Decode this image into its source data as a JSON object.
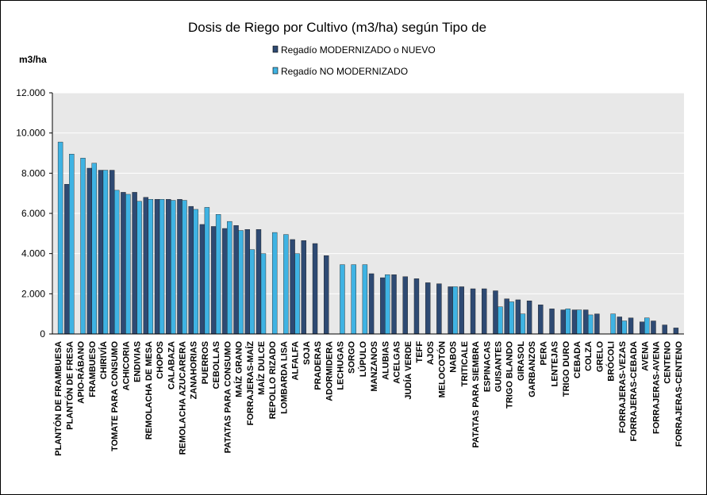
{
  "chart_data": {
    "type": "bar",
    "title": "Dosis de Riego por Cultivo (m3/ha) según Tipo de",
    "ylabel": "m3/ha",
    "ylim": [
      0,
      12000
    ],
    "yticks": [
      "0",
      "2.000",
      "4.000",
      "6.000",
      "8.000",
      "10.000",
      "12.000"
    ],
    "grid": true,
    "legend_position": "top",
    "colors": {
      "plot_bg": "#e8e8e8",
      "gridline": "#ffffff",
      "axis": "#000000"
    },
    "categories": [
      "PLANTÓN DE FRAMBUESA",
      "PLANTÓN DE FRESA",
      "APIO-RÁBANO",
      "FRAMBUESO",
      "CHIRIVÍA",
      "TOMATE PARA CONSUMO",
      "ACHICORIA",
      "ENDIVIAS",
      "REMOLACHA DE MESA",
      "CHOPOS",
      "CALABAZA",
      "REMOLACHA AZUCARERA",
      "ZANAHORIAS",
      "PUERROS",
      "CEBOLLAS",
      "PATATAS PARA CONSUMO",
      "MAÍZ GRANO",
      "FORRAJERAS-MAÍZ",
      "MAÍZ DULCE",
      "REPOLLO RIZADO",
      "LOMBARDA LISA",
      "ALFALFA",
      "SOJA",
      "PRADERAS",
      "ADORMIDERA",
      "LECHUGAS",
      "SORGO",
      "LÚPULO",
      "MANZANOS",
      "ALUBIAS",
      "ACELGAS",
      "JUDÍA VERDE",
      "TEFF",
      "AJOS",
      "MELOCOTÓN",
      "NABOS",
      "TRITICALE",
      "PATATAS PARA SIEMBRA",
      "ESPINACAS",
      "GUISANTES",
      "TRIGO BLANDO",
      "GIRASOL",
      "GARBANZOS",
      "PERA",
      "LENTEJAS",
      "TRIGO DURO",
      "CEBADA",
      "COLZA",
      "GRELO",
      "BRÓCOLI",
      "FORRAJERAS-VEZAS",
      "FORRAJERAS-CEBADA",
      "AVENA",
      "FORRAJERAS-AVENA",
      "CENTENO",
      "FORRAJERAS-CENTENO"
    ],
    "series": [
      {
        "name": "Regadío MODERNIZADO o NUEVO",
        "color": "#2e4a73",
        "values": [
          null,
          7450,
          null,
          8250,
          8150,
          8150,
          7050,
          7050,
          6800,
          6700,
          6700,
          6700,
          6350,
          5450,
          5350,
          5250,
          5400,
          5200,
          5200,
          null,
          null,
          4700,
          4650,
          4500,
          3900,
          null,
          null,
          null,
          3000,
          2800,
          2950,
          2850,
          2750,
          2550,
          2500,
          2350,
          2350,
          2250,
          2250,
          2150,
          1750,
          1700,
          1650,
          1450,
          1250,
          1200,
          1200,
          1200,
          1000,
          null,
          850,
          800,
          600,
          650,
          450,
          300
        ]
      },
      {
        "name": "Regadío NO MODERNIZADO",
        "color": "#3fb3e3",
        "values": [
          9550,
          8950,
          8750,
          8500,
          8150,
          7150,
          6950,
          6600,
          6700,
          6700,
          6650,
          6650,
          6200,
          6300,
          5950,
          5600,
          5150,
          4200,
          4000,
          5050,
          4950,
          4000,
          null,
          null,
          null,
          3450,
          3450,
          3450,
          null,
          2950,
          null,
          null,
          null,
          null,
          null,
          2350,
          null,
          null,
          null,
          1350,
          1600,
          1000,
          null,
          null,
          null,
          1250,
          1200,
          950,
          null,
          1000,
          650,
          null,
          800,
          null,
          null,
          null
        ]
      }
    ]
  }
}
